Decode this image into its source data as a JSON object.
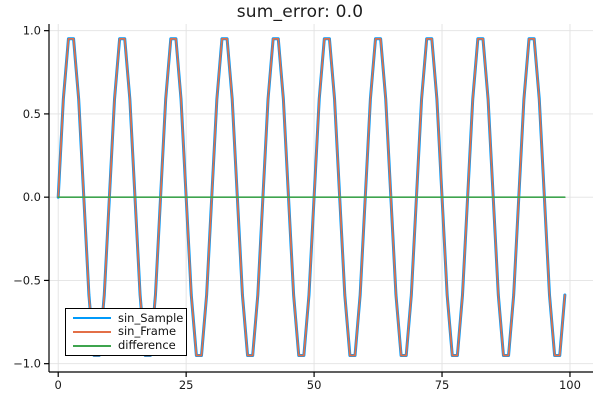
{
  "chart_data": {
    "type": "line",
    "title": "sum_error: 0.0",
    "x": {
      "start": 0,
      "step": 1,
      "count": 100
    },
    "series": [
      {
        "name": "sin_Sample",
        "color": "#009AFA",
        "stroke_width": 3.0,
        "formula": "sin(2*pi*x/10) sampled at integer x",
        "y": {
          "type": "periodic",
          "period": 10,
          "pattern": [
            0,
            0.5878,
            0.9511,
            0.9511,
            0.5878,
            0,
            -0.5878,
            -0.9511,
            -0.9511,
            -0.5878
          ]
        }
      },
      {
        "name": "sin_Frame",
        "color": "#E36F47",
        "stroke_width": 1.7,
        "formula": "sin(2*pi*x/10) sampled at integer x",
        "y": {
          "type": "periodic",
          "period": 10,
          "pattern": [
            0,
            0.5878,
            0.9511,
            0.9511,
            0.5878,
            0,
            -0.5878,
            -0.9511,
            -0.9511,
            -0.5878
          ]
        }
      },
      {
        "name": "difference",
        "color": "#3EA44E",
        "stroke_width": 1.6,
        "formula": "sin_Sample - sin_Frame = 0",
        "y": {
          "type": "constant",
          "value": 0
        }
      }
    ],
    "xticks": [
      {
        "v": 0,
        "label": "0"
      },
      {
        "v": 25,
        "label": "25"
      },
      {
        "v": 50,
        "label": "50"
      },
      {
        "v": 75,
        "label": "75"
      },
      {
        "v": 100,
        "label": "100"
      }
    ],
    "yticks": [
      {
        "v": -1.0,
        "label": "−1.0"
      },
      {
        "v": -0.5,
        "label": "−0.5"
      },
      {
        "v": 0.0,
        "label": "0.0"
      },
      {
        "v": 0.5,
        "label": "0.5"
      },
      {
        "v": 1.0,
        "label": "1.0"
      }
    ],
    "xlim": [
      -1.8,
      104.5
    ],
    "ylim": [
      -1.05,
      1.04
    ],
    "grid": true,
    "legend_position": "bottom-left",
    "colors": {
      "background": "#ffffff",
      "grid": "#e2e2e2",
      "axis": "#000000",
      "title_text": "#1c1c1c",
      "tick_text": "#1a1a1a"
    }
  }
}
